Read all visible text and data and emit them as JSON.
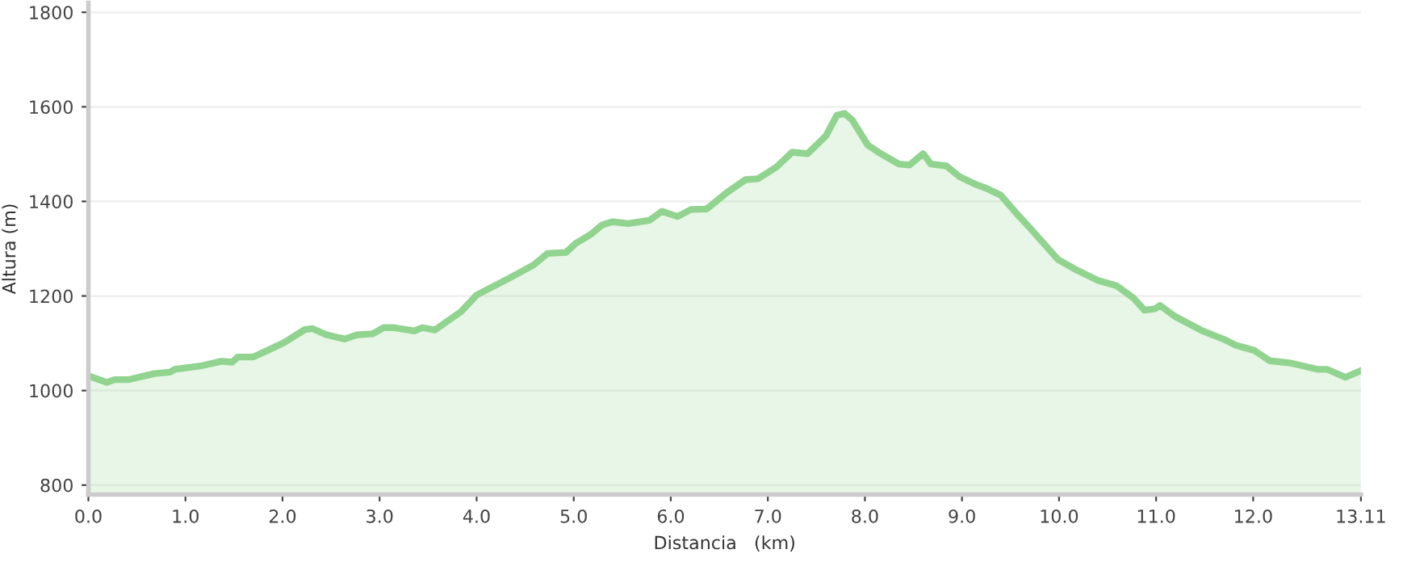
{
  "chart_data": {
    "type": "area",
    "xlabel": "Distancia   (km)",
    "ylabel": "Altura (m)",
    "xlim": [
      0,
      13.11
    ],
    "xticks": [
      {
        "value": 0,
        "label": "0.0"
      },
      {
        "value": 1,
        "label": "1.0"
      },
      {
        "value": 2,
        "label": "2.0"
      },
      {
        "value": 3,
        "label": "3.0"
      },
      {
        "value": 4,
        "label": "4.0"
      },
      {
        "value": 5,
        "label": "5.0"
      },
      {
        "value": 6,
        "label": "6.0"
      },
      {
        "value": 7,
        "label": "7.0"
      },
      {
        "value": 8,
        "label": "8.0"
      },
      {
        "value": 9,
        "label": "9.0"
      },
      {
        "value": 10,
        "label": "10.0"
      },
      {
        "value": 11,
        "label": "11.0"
      },
      {
        "value": 12,
        "label": "12.0"
      },
      {
        "value": 13.11,
        "label": "13.11"
      }
    ],
    "ylim": [
      780,
      1820
    ],
    "yticks": [
      800,
      1000,
      1200,
      1400,
      1600,
      1800
    ],
    "grid": "y",
    "legend": false,
    "series": [
      {
        "color": "#90d48f",
        "x": [
          0,
          0.19,
          0.27,
          0.41,
          0.68,
          0.84,
          0.89,
          1.16,
          1.37,
          1.48,
          1.54,
          1.7,
          1.91,
          2.02,
          2.23,
          2.31,
          2.45,
          2.64,
          2.77,
          2.93,
          3.04,
          3.15,
          3.36,
          3.44,
          3.57,
          3.84,
          4.0,
          4.33,
          4.59,
          4.73,
          4.92,
          5.02,
          5.18,
          5.29,
          5.4,
          5.56,
          5.78,
          5.91,
          6.07,
          6.21,
          6.37,
          6.58,
          6.77,
          6.9,
          7.09,
          7.25,
          7.41,
          7.6,
          7.71,
          7.79,
          7.87,
          8.03,
          8.14,
          8.35,
          8.46,
          8.6,
          8.68,
          8.84,
          8.97,
          9.13,
          9.27,
          9.4,
          9.56,
          9.7,
          9.99,
          10.18,
          10.4,
          10.59,
          10.77,
          10.88,
          10.99,
          11.04,
          11.2,
          11.47,
          11.69,
          11.82,
          12.01,
          12.17,
          12.39,
          12.66,
          12.76,
          12.95,
          13.11
        ],
        "values": [
          1031,
          1017,
          1023,
          1023,
          1036,
          1039,
          1045,
          1052,
          1062,
          1060,
          1071,
          1071,
          1091,
          1102,
          1129,
          1131,
          1118,
          1109,
          1118,
          1120,
          1133,
          1133,
          1126,
          1133,
          1128,
          1167,
          1202,
          1237,
          1266,
          1290,
          1292,
          1311,
          1331,
          1350,
          1357,
          1353,
          1360,
          1379,
          1368,
          1383,
          1384,
          1419,
          1446,
          1448,
          1473,
          1504,
          1501,
          1539,
          1582,
          1586,
          1572,
          1519,
          1504,
          1479,
          1477,
          1501,
          1479,
          1475,
          1453,
          1437,
          1426,
          1413,
          1375,
          1344,
          1277,
          1255,
          1233,
          1222,
          1195,
          1170,
          1173,
          1180,
          1156,
          1127,
          1109,
          1096,
          1085,
          1063,
          1058,
          1045,
          1045,
          1028,
          1042
        ]
      }
    ]
  }
}
